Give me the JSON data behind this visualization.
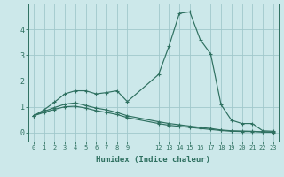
{
  "xlabel": "Humidex (Indice chaleur)",
  "bg_color": "#cce8ea",
  "grid_color": "#a0c8cc",
  "line_color": "#2e7060",
  "ylim": [
    -0.35,
    5.0
  ],
  "xlim": [
    -0.5,
    23.5
  ],
  "x_ticks": [
    0,
    1,
    2,
    3,
    4,
    5,
    6,
    7,
    8,
    9,
    12,
    13,
    14,
    15,
    16,
    17,
    18,
    19,
    20,
    21,
    22,
    23
  ],
  "x_tick_labels": [
    "0",
    "1",
    "2",
    "3",
    "4",
    "5",
    "6",
    "7",
    "8",
    "9",
    "12",
    "13",
    "14",
    "15",
    "16",
    "17",
    "18",
    "19",
    "20",
    "21",
    "22",
    "23"
  ],
  "y_ticks": [
    0,
    1,
    2,
    3,
    4
  ],
  "curve1_x": [
    0,
    1,
    2,
    3,
    4,
    5,
    6,
    7,
    8,
    9,
    12,
    13,
    14,
    15,
    16,
    17,
    18,
    19,
    20,
    21,
    22,
    23
  ],
  "curve1_y": [
    0.65,
    0.88,
    1.18,
    1.5,
    1.62,
    1.62,
    1.5,
    1.55,
    1.62,
    1.2,
    2.25,
    3.35,
    4.62,
    4.68,
    3.6,
    3.05,
    1.08,
    0.48,
    0.35,
    0.35,
    0.07,
    0.05
  ],
  "curve2_x": [
    0,
    1,
    2,
    3,
    4,
    5,
    6,
    7,
    8,
    9,
    12,
    13,
    14,
    15,
    16,
    17,
    18,
    19,
    20,
    21,
    22,
    23
  ],
  "curve2_y": [
    0.65,
    0.82,
    0.97,
    1.1,
    1.15,
    1.05,
    0.95,
    0.88,
    0.78,
    0.65,
    0.42,
    0.35,
    0.3,
    0.25,
    0.2,
    0.16,
    0.1,
    0.07,
    0.06,
    0.05,
    0.03,
    0.02
  ],
  "curve3_x": [
    0,
    1,
    2,
    3,
    4,
    5,
    6,
    7,
    8,
    9,
    12,
    13,
    14,
    15,
    16,
    17,
    18,
    19,
    20,
    21,
    22,
    23
  ],
  "curve3_y": [
    0.65,
    0.78,
    0.9,
    1.0,
    1.02,
    0.95,
    0.85,
    0.78,
    0.7,
    0.58,
    0.35,
    0.28,
    0.24,
    0.2,
    0.16,
    0.12,
    0.08,
    0.05,
    0.04,
    0.04,
    0.02,
    0.01
  ]
}
